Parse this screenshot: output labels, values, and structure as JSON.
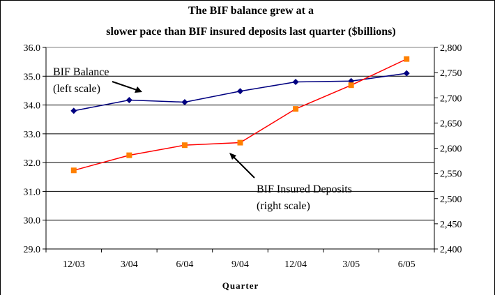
{
  "chart_data": {
    "type": "line",
    "title_line1": "The BIF balance grew at a",
    "title_line2": "slower pace than BIF insured deposits last quarter ($billions)",
    "xlabel": "Quarter",
    "categories": [
      "12/03",
      "3/04",
      "6/04",
      "9/04",
      "12/04",
      "3/05",
      "6/05"
    ],
    "y_left": {
      "min": 29.0,
      "max": 36.0,
      "step": 1.0,
      "ticks": [
        "29.0",
        "30.0",
        "31.0",
        "32.0",
        "33.0",
        "34.0",
        "35.0",
        "36.0"
      ]
    },
    "y_right": {
      "min": 2400,
      "max": 2800,
      "step": 50,
      "ticks": [
        "2,400",
        "2,450",
        "2,500",
        "2,550",
        "2,600",
        "2,650",
        "2,700",
        "2,750",
        "2,800"
      ]
    },
    "grid": true,
    "series": [
      {
        "axis": "left",
        "color": "#000080",
        "marker": "diamond",
        "values": [
          33.8,
          34.17,
          34.1,
          34.48,
          34.8,
          34.83,
          35.1
        ]
      },
      {
        "axis": "right",
        "color": "#FF0000",
        "marker_color": "#FF8000",
        "marker": "square",
        "values": [
          2556,
          2586,
          2606,
          2611,
          2678,
          2725,
          2777
        ]
      }
    ],
    "annotations": [
      {
        "line1": "BIF Balance",
        "line2": "(left scale)"
      },
      {
        "line1": "BIF Insured Deposits",
        "line2": "(right scale)"
      }
    ]
  }
}
